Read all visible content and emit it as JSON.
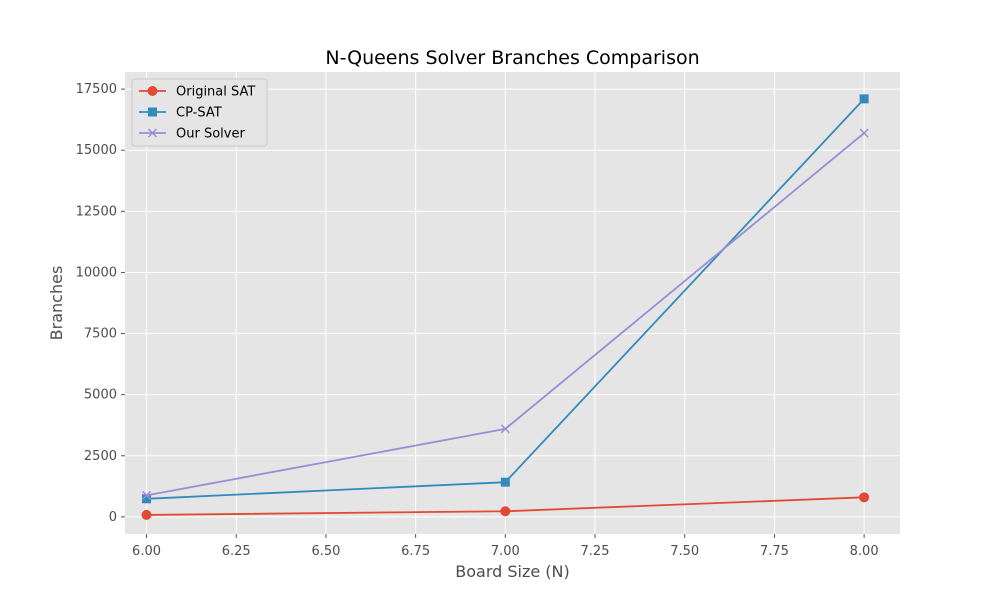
{
  "chart_data": {
    "type": "line",
    "title": "N-Queens Solver Branches Comparison",
    "xlabel": "Board Size (N)",
    "ylabel": "Branches",
    "x": [
      6,
      7,
      8
    ],
    "xlim": [
      5.94,
      8.1
    ],
    "ylim": [
      -700,
      18200
    ],
    "xticks": [
      6.0,
      6.25,
      6.5,
      6.75,
      7.0,
      7.25,
      7.5,
      7.75,
      8.0
    ],
    "xtick_labels": [
      "6.00",
      "6.25",
      "6.50",
      "6.75",
      "7.00",
      "7.25",
      "7.50",
      "7.75",
      "8.00"
    ],
    "yticks": [
      0,
      2500,
      5000,
      7500,
      10000,
      12500,
      15000,
      17500
    ],
    "ytick_labels": [
      "0",
      "2500",
      "5000",
      "7500",
      "10000",
      "12500",
      "15000",
      "17500"
    ],
    "grid": true,
    "legend_position": "top-left",
    "style": {
      "plot_background": "#e5e5e5",
      "grid_color": "#ffffff"
    },
    "series": [
      {
        "name": "Original SAT",
        "values": [
          80,
          230,
          800
        ],
        "color": "#e24a33",
        "marker": "circle"
      },
      {
        "name": "CP-SAT",
        "values": [
          740,
          1420,
          17100
        ],
        "color": "#348abd",
        "marker": "square"
      },
      {
        "name": "Our Solver",
        "values": [
          880,
          3600,
          15700
        ],
        "color": "#988ed5",
        "marker": "x"
      }
    ]
  }
}
